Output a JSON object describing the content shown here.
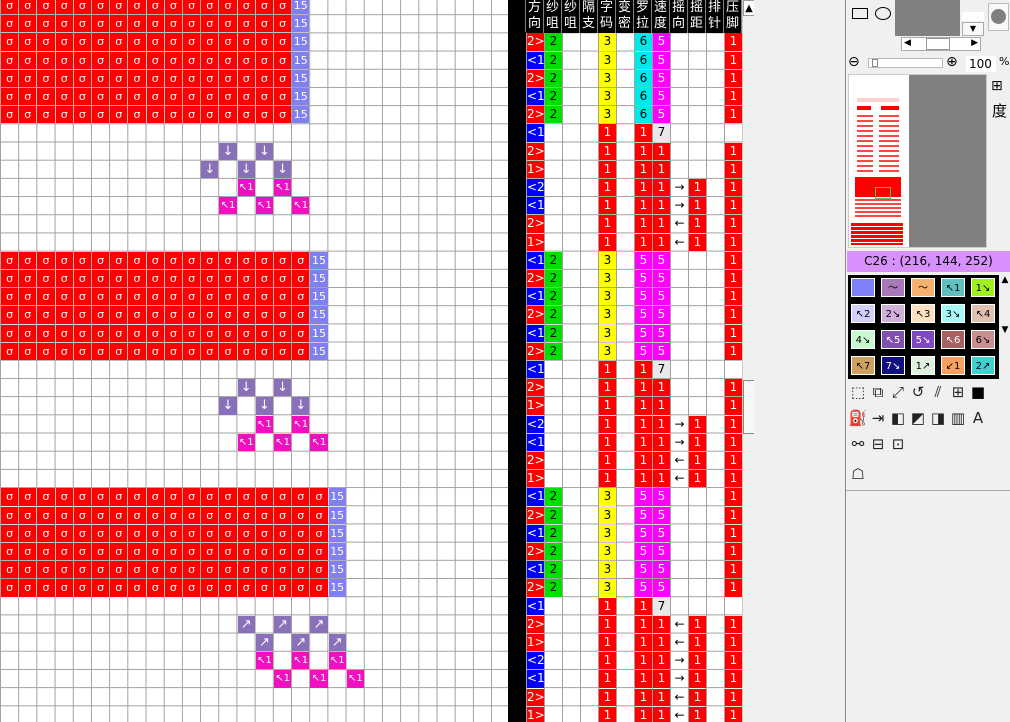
{
  "colors": {
    "red": "#ff0000",
    "knit_label": "#8080f0",
    "purple": "#8a70b8",
    "magenta": "#f010c0",
    "green": "#00e000",
    "yellow": "#ffff00",
    "cyan": "#00e8e8",
    "pink": "#ff00ff",
    "blue": "#0000ff",
    "gray": "#e8e8e8",
    "color_bar": "#d890fc"
  },
  "pattern": {
    "bands": [
      {
        "rows": [
          0,
          1,
          2,
          3,
          4,
          5,
          6
        ],
        "red_cols": 16,
        "label": "15"
      },
      {
        "rows": [
          14,
          15,
          16,
          17,
          18,
          19
        ],
        "red_cols": 17,
        "label": "15"
      },
      {
        "rows": [
          27,
          28,
          29,
          30,
          31,
          32
        ],
        "red_cols": 18,
        "label": "15"
      }
    ],
    "stitch_symbol": "σ",
    "symbols": [
      {
        "row": 8,
        "cols": [
          12,
          14
        ],
        "type": "down",
        "glyph": "↓"
      },
      {
        "row": 9,
        "cols": [
          11,
          13,
          15
        ],
        "type": "down",
        "glyph": "↓"
      },
      {
        "row": 10,
        "cols": [
          13,
          15
        ],
        "type": "cross",
        "glyph": "↖1"
      },
      {
        "row": 11,
        "cols": [
          12,
          14,
          16
        ],
        "type": "cross",
        "glyph": "↖1"
      },
      {
        "row": 21,
        "cols": [
          13,
          15
        ],
        "type": "down",
        "glyph": "↓"
      },
      {
        "row": 22,
        "cols": [
          12,
          14,
          16
        ],
        "type": "down",
        "glyph": "↓"
      },
      {
        "row": 23,
        "cols": [
          14,
          16
        ],
        "type": "cross",
        "glyph": "↖1"
      },
      {
        "row": 24,
        "cols": [
          13,
          15,
          17
        ],
        "type": "cross",
        "glyph": "↖1"
      },
      {
        "row": 34,
        "cols": [
          13,
          15,
          17
        ],
        "type": "up",
        "glyph": "↗"
      },
      {
        "row": 35,
        "cols": [
          14,
          16,
          18
        ],
        "type": "up",
        "glyph": "↗"
      },
      {
        "row": 36,
        "cols": [
          14,
          16,
          18
        ],
        "type": "cross",
        "glyph": "↖1"
      },
      {
        "row": 37,
        "cols": [
          15,
          17,
          19
        ],
        "type": "cross",
        "glyph": "↖1"
      }
    ]
  },
  "table": {
    "headers": [
      [
        "方",
        "向"
      ],
      [
        "纱",
        "咀"
      ],
      [
        "纱",
        "咀"
      ],
      [
        "隔",
        "支"
      ],
      [
        "字",
        "码"
      ],
      [
        "变",
        "密"
      ],
      [
        "罗",
        "拉"
      ],
      [
        "速",
        "度"
      ],
      [
        "摇",
        "向"
      ],
      [
        "摇",
        "距"
      ],
      [
        "排",
        "针"
      ],
      [
        "压",
        "脚"
      ]
    ],
    "first_row": 2,
    "rows": [
      {
        "dir": "2>",
        "yarn": "2",
        "code": "3",
        "roller": "6",
        "speed": "5",
        "sdir": "",
        "swing": "",
        "press": "1"
      },
      {
        "dir": "<1",
        "yarn": "2",
        "code": "3",
        "roller": "6",
        "speed": "5",
        "sdir": "",
        "swing": "",
        "press": "1"
      },
      {
        "dir": "2>",
        "yarn": "2",
        "code": "3",
        "roller": "6",
        "speed": "5",
        "sdir": "",
        "swing": "",
        "press": "1"
      },
      {
        "dir": "<1",
        "yarn": "2",
        "code": "3",
        "roller": "6",
        "speed": "5",
        "sdir": "",
        "swing": "",
        "press": "1"
      },
      {
        "dir": "2>",
        "yarn": "2",
        "code": "3",
        "roller": "6",
        "speed": "5",
        "sdir": "",
        "swing": "",
        "press": "1"
      },
      {
        "dir": "<1",
        "yarn": "",
        "code": "1",
        "roller": "1",
        "speed": "7",
        "sdir": "",
        "swing": "",
        "press": ""
      },
      {
        "dir": "2>",
        "yarn": "",
        "code": "1",
        "roller": "1",
        "speed": "1",
        "sdir": "",
        "swing": "",
        "press": "1"
      },
      {
        "dir": "1>",
        "yarn": "",
        "code": "1",
        "roller": "1",
        "speed": "1",
        "sdir": "",
        "swing": "",
        "press": "1"
      },
      {
        "dir": "<2",
        "yarn": "",
        "code": "1",
        "roller": "1",
        "speed": "1",
        "sdir": "→",
        "swing": "1",
        "press": "1"
      },
      {
        "dir": "<1",
        "yarn": "",
        "code": "1",
        "roller": "1",
        "speed": "1",
        "sdir": "→",
        "swing": "1",
        "press": "1"
      },
      {
        "dir": "2>",
        "yarn": "",
        "code": "1",
        "roller": "1",
        "speed": "1",
        "sdir": "←",
        "swing": "1",
        "press": "1"
      },
      {
        "dir": "1>",
        "yarn": "",
        "code": "1",
        "roller": "1",
        "speed": "1",
        "sdir": "←",
        "swing": "1",
        "press": "1"
      },
      {
        "dir": "<1",
        "yarn": "2",
        "code": "3",
        "roller": "5",
        "speed": "5",
        "sdir": "",
        "swing": "",
        "press": "1"
      },
      {
        "dir": "2>",
        "yarn": "2",
        "code": "3",
        "roller": "5",
        "speed": "5",
        "sdir": "",
        "swing": "",
        "press": "1"
      },
      {
        "dir": "<1",
        "yarn": "2",
        "code": "3",
        "roller": "5",
        "speed": "5",
        "sdir": "",
        "swing": "",
        "press": "1"
      },
      {
        "dir": "2>",
        "yarn": "2",
        "code": "3",
        "roller": "5",
        "speed": "5",
        "sdir": "",
        "swing": "",
        "press": "1"
      },
      {
        "dir": "<1",
        "yarn": "2",
        "code": "3",
        "roller": "5",
        "speed": "5",
        "sdir": "",
        "swing": "",
        "press": "1"
      },
      {
        "dir": "2>",
        "yarn": "2",
        "code": "3",
        "roller": "5",
        "speed": "5",
        "sdir": "",
        "swing": "",
        "press": "1"
      },
      {
        "dir": "<1",
        "yarn": "",
        "code": "1",
        "roller": "1",
        "speed": "7",
        "sdir": "",
        "swing": "",
        "press": ""
      },
      {
        "dir": "2>",
        "yarn": "",
        "code": "1",
        "roller": "1",
        "speed": "1",
        "sdir": "",
        "swing": "",
        "press": "1"
      },
      {
        "dir": "1>",
        "yarn": "",
        "code": "1",
        "roller": "1",
        "speed": "1",
        "sdir": "",
        "swing": "",
        "press": "1"
      },
      {
        "dir": "<2",
        "yarn": "",
        "code": "1",
        "roller": "1",
        "speed": "1",
        "sdir": "→",
        "swing": "1",
        "press": "1"
      },
      {
        "dir": "<1",
        "yarn": "",
        "code": "1",
        "roller": "1",
        "speed": "1",
        "sdir": "→",
        "swing": "1",
        "press": "1"
      },
      {
        "dir": "2>",
        "yarn": "",
        "code": "1",
        "roller": "1",
        "speed": "1",
        "sdir": "←",
        "swing": "1",
        "press": "1"
      },
      {
        "dir": "1>",
        "yarn": "",
        "code": "1",
        "roller": "1",
        "speed": "1",
        "sdir": "←",
        "swing": "1",
        "press": "1"
      },
      {
        "dir": "<1",
        "yarn": "2",
        "code": "3",
        "roller": "5",
        "speed": "5",
        "sdir": "",
        "swing": "",
        "press": "1"
      },
      {
        "dir": "2>",
        "yarn": "2",
        "code": "3",
        "roller": "5",
        "speed": "5",
        "sdir": "",
        "swing": "",
        "press": "1"
      },
      {
        "dir": "<1",
        "yarn": "2",
        "code": "3",
        "roller": "5",
        "speed": "5",
        "sdir": "",
        "swing": "",
        "press": "1"
      },
      {
        "dir": "2>",
        "yarn": "2",
        "code": "3",
        "roller": "5",
        "speed": "5",
        "sdir": "",
        "swing": "",
        "press": "1"
      },
      {
        "dir": "<1",
        "yarn": "2",
        "code": "3",
        "roller": "5",
        "speed": "5",
        "sdir": "",
        "swing": "",
        "press": "1"
      },
      {
        "dir": "2>",
        "yarn": "2",
        "code": "3",
        "roller": "5",
        "speed": "5",
        "sdir": "",
        "swing": "",
        "press": "1"
      },
      {
        "dir": "<1",
        "yarn": "",
        "code": "1",
        "roller": "1",
        "speed": "7",
        "sdir": "",
        "swing": "",
        "press": ""
      },
      {
        "dir": "2>",
        "yarn": "",
        "code": "1",
        "roller": "1",
        "speed": "1",
        "sdir": "←",
        "swing": "1",
        "press": "1"
      },
      {
        "dir": "1>",
        "yarn": "",
        "code": "1",
        "roller": "1",
        "speed": "1",
        "sdir": "←",
        "swing": "1",
        "press": "1"
      },
      {
        "dir": "<2",
        "yarn": "",
        "code": "1",
        "roller": "1",
        "speed": "1",
        "sdir": "→",
        "swing": "1",
        "press": "1"
      },
      {
        "dir": "<1",
        "yarn": "",
        "code": "1",
        "roller": "1",
        "speed": "1",
        "sdir": "→",
        "swing": "1",
        "press": "1"
      },
      {
        "dir": "2>",
        "yarn": "",
        "code": "1",
        "roller": "1",
        "speed": "1",
        "sdir": "←",
        "swing": "1",
        "press": "1"
      },
      {
        "dir": "1>",
        "yarn": "",
        "code": "1",
        "roller": "1",
        "speed": "1",
        "sdir": "←",
        "swing": "1",
        "press": "1"
      }
    ]
  },
  "panel": {
    "zoom_value": "100",
    "zoom_unit": "%",
    "tab_label": "度",
    "color_info": "C26 : (216, 144, 252)",
    "palette": [
      {
        "bg": "#7f7ff7",
        "t": ""
      },
      {
        "bg": "#a878b8",
        "t": "〜"
      },
      {
        "bg": "#f8b070",
        "t": "〜"
      },
      {
        "bg": "#60c0c0",
        "t": "↖1"
      },
      {
        "bg": "#a0f020",
        "t": "1↘"
      },
      {
        "bg": "#d0d0f8",
        "t": "↖2"
      },
      {
        "bg": "#d0b0d8",
        "t": "2↘"
      },
      {
        "bg": "#fce0c0",
        "t": "↖3"
      },
      {
        "bg": "#a8f8f8",
        "t": "3↘"
      },
      {
        "bg": "#e0c0b0",
        "t": "↖4"
      },
      {
        "bg": "#c8f8d0",
        "t": "4↘"
      },
      {
        "bg": "#8050b0",
        "t": "↖5"
      },
      {
        "bg": "#8048c0",
        "t": "5↘"
      },
      {
        "bg": "#a86060",
        "t": "↖6"
      },
      {
        "bg": "#c89090",
        "t": "6↘"
      },
      {
        "bg": "#d0a060",
        "t": "↖7"
      },
      {
        "bg": "#101080",
        "t": "7↘"
      },
      {
        "bg": "#e0f0e0",
        "t": "1↗"
      },
      {
        "bg": "#f8a060",
        "t": "↙1"
      },
      {
        "bg": "#40d0d0",
        "t": "2↗"
      }
    ],
    "tools": [
      [
        {
          "n": "select-icon",
          "g": "⬚"
        },
        {
          "n": "copy-icon",
          "g": "⧉"
        },
        {
          "n": "resize-icon",
          "g": "⤢"
        },
        {
          "n": "rotate-icon",
          "g": "↺"
        },
        {
          "n": "skew-icon",
          "g": "⫽"
        },
        {
          "n": "split-icon",
          "g": "⊞"
        },
        {
          "n": "color-swatch-icon",
          "g": "■"
        }
      ],
      [
        {
          "n": "fill-icon",
          "g": "⛽"
        },
        {
          "n": "replace-icon",
          "g": "⇥"
        },
        {
          "n": "mirror-icon",
          "g": "◧"
        },
        {
          "n": "brush-icon",
          "g": "◩"
        },
        {
          "n": "shift-icon",
          "g": "◨"
        },
        {
          "n": "stats-icon",
          "g": "▥"
        },
        {
          "n": "text-icon",
          "g": "A"
        }
      ],
      [
        {
          "n": "link-icon",
          "g": "⚯"
        },
        {
          "n": "insert-row-icon",
          "g": "⊟"
        },
        {
          "n": "insert-col-icon",
          "g": "⊡"
        }
      ],
      [
        {
          "n": "figure-icon",
          "g": "☖"
        }
      ]
    ]
  }
}
